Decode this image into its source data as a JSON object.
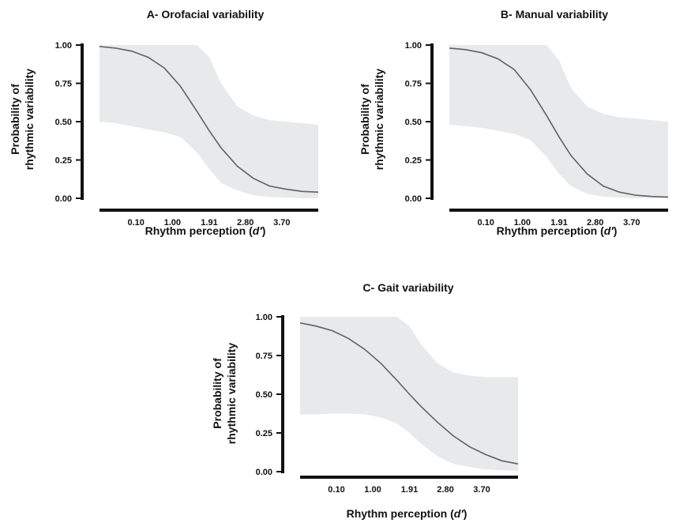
{
  "chart_data": [
    {
      "type": "line",
      "title": "A- Orofacial variability",
      "xlabel_main": "Rhythm perception (",
      "xlabel_italic": "d′",
      "xlabel_end": ")",
      "ylabel_lines": [
        "Probability of",
        "rhythmic variability"
      ],
      "xtick_labels": [
        "0.10",
        "1.00",
        "1.91",
        "2.80",
        "3.70"
      ],
      "ytick_labels": [
        "0.00",
        "0.25",
        "0.50",
        "0.75",
        "1.00"
      ],
      "ylim": [
        0,
        1
      ],
      "xlim": [
        -0.8,
        4.6
      ],
      "xticks": [
        0.1,
        1.0,
        1.91,
        2.8,
        3.7
      ],
      "series": [
        {
          "x": [
            -0.8,
            -0.4,
            0.0,
            0.4,
            0.8,
            1.2,
            1.6,
            1.91,
            2.2,
            2.6,
            3.0,
            3.4,
            3.8,
            4.2,
            4.6
          ],
          "y": [
            0.99,
            0.98,
            0.96,
            0.92,
            0.85,
            0.73,
            0.57,
            0.44,
            0.33,
            0.21,
            0.13,
            0.08,
            0.06,
            0.045,
            0.04
          ],
          "upper": [
            1.0,
            1.0,
            1.0,
            1.0,
            1.0,
            1.0,
            1.0,
            0.92,
            0.75,
            0.6,
            0.54,
            0.51,
            0.5,
            0.49,
            0.48
          ],
          "lower": [
            0.5,
            0.49,
            0.47,
            0.45,
            0.43,
            0.4,
            0.3,
            0.19,
            0.1,
            0.05,
            0.02,
            0.01,
            0.005,
            0.0,
            0.0
          ]
        }
      ]
    },
    {
      "type": "line",
      "title": "B- Manual variability",
      "xlabel_main": "Rhythm perception (",
      "xlabel_italic": "d′",
      "xlabel_end": ")",
      "ylabel_lines": [
        "Probability of",
        "rhythmic variability"
      ],
      "xtick_labels": [
        "0.10",
        "1.00",
        "1.91",
        "2.80",
        "3.70"
      ],
      "ytick_labels": [
        "0.00",
        "0.25",
        "0.50",
        "0.75",
        "1.00"
      ],
      "ylim": [
        0,
        1
      ],
      "xlim": [
        -0.8,
        4.6
      ],
      "xticks": [
        0.1,
        1.0,
        1.91,
        2.8,
        3.7
      ],
      "series": [
        {
          "x": [
            -0.8,
            -0.4,
            0.0,
            0.4,
            0.8,
            1.2,
            1.6,
            1.91,
            2.2,
            2.6,
            3.0,
            3.4,
            3.8,
            4.2,
            4.6
          ],
          "y": [
            0.98,
            0.97,
            0.95,
            0.91,
            0.84,
            0.71,
            0.54,
            0.4,
            0.28,
            0.16,
            0.08,
            0.04,
            0.02,
            0.012,
            0.008
          ],
          "upper": [
            1.0,
            1.0,
            1.0,
            1.0,
            1.0,
            1.0,
            1.0,
            0.9,
            0.72,
            0.6,
            0.55,
            0.53,
            0.52,
            0.51,
            0.5
          ],
          "lower": [
            0.48,
            0.47,
            0.46,
            0.44,
            0.42,
            0.38,
            0.27,
            0.16,
            0.08,
            0.03,
            0.01,
            0.005,
            0.0,
            0.0,
            0.0
          ]
        }
      ]
    },
    {
      "type": "line",
      "title": "C- Gait variability",
      "xlabel_main": "Rhythm perception (",
      "xlabel_italic": "d′",
      "xlabel_end": ")",
      "ylabel_lines": [
        "Probability of",
        "rhythmic variability"
      ],
      "xtick_labels": [
        "0.10",
        "1.00",
        "1.91",
        "2.80",
        "3.70"
      ],
      "ytick_labels": [
        "0.00",
        "0.25",
        "0.50",
        "0.75",
        "1.00"
      ],
      "ylim": [
        0,
        1
      ],
      "xlim": [
        -0.8,
        4.6
      ],
      "xticks": [
        0.1,
        1.0,
        1.91,
        2.8,
        3.7
      ],
      "series": [
        {
          "x": [
            -0.8,
            -0.4,
            0.0,
            0.4,
            0.8,
            1.2,
            1.6,
            1.91,
            2.2,
            2.6,
            3.0,
            3.4,
            3.8,
            4.2,
            4.6
          ],
          "y": [
            0.96,
            0.94,
            0.91,
            0.86,
            0.79,
            0.7,
            0.59,
            0.5,
            0.42,
            0.32,
            0.23,
            0.16,
            0.11,
            0.07,
            0.05
          ],
          "upper": [
            1.0,
            1.0,
            1.0,
            1.0,
            1.0,
            1.0,
            1.0,
            0.94,
            0.82,
            0.7,
            0.64,
            0.62,
            0.61,
            0.61,
            0.61
          ],
          "lower": [
            0.37,
            0.37,
            0.375,
            0.375,
            0.37,
            0.35,
            0.31,
            0.25,
            0.18,
            0.1,
            0.05,
            0.03,
            0.015,
            0.008,
            0.005
          ]
        }
      ]
    }
  ],
  "colors": {
    "band": "#e8e9ea",
    "line": "#5f6165",
    "axis": "#111111"
  }
}
